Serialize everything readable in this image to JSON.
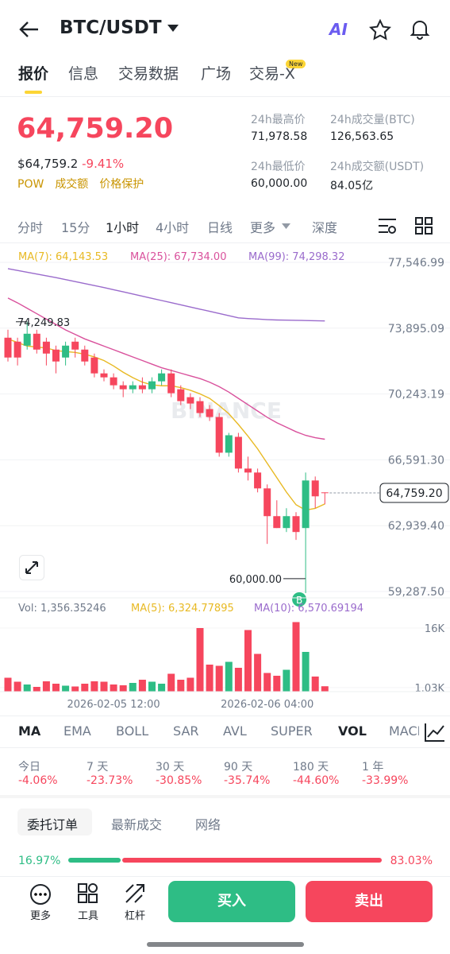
{
  "header": {
    "pair": "BTC/USDT",
    "ai": "AI"
  },
  "tabs": [
    "报价",
    "信息",
    "交易数据",
    "广场",
    "交易-X"
  ],
  "new_badge": "New",
  "price": {
    "last": "64,759.20",
    "usd": "$64,759.2",
    "change": "-9.41%",
    "tags": [
      "POW",
      "成交额",
      "价格保护"
    ]
  },
  "stats": [
    {
      "label": "24h最高价",
      "value": "71,978.58"
    },
    {
      "label": "24h成交量(BTC)",
      "value": "126,563.65"
    },
    {
      "label": "24h最低价",
      "value": "60,000.00"
    },
    {
      "label": "24h成交额(USDT)",
      "value": "84.05亿"
    }
  ],
  "intervals": [
    "分时",
    "15分",
    "1小时",
    "4小时",
    "日线",
    "更多",
    "深度"
  ],
  "chart_data": {
    "type": "candlestick",
    "watermark": "BINANCE",
    "ylim": [
      58935,
      78341
    ],
    "yticks": [
      {
        "value": 77546.99,
        "label": "77,546.99"
      },
      {
        "value": 73895.09,
        "label": "73,895.09"
      },
      {
        "value": 70243.19,
        "label": "70,243.19"
      },
      {
        "value": 66591.3,
        "label": "66,591.30"
      },
      {
        "value": 62939.4,
        "label": "62,939.40"
      },
      {
        "value": 59287.5,
        "label": "59,287.50"
      }
    ],
    "categories": [
      null,
      null,
      null,
      null,
      null,
      null,
      null,
      null,
      null,
      null,
      null,
      "2026-02-05 12:00",
      null,
      null,
      null,
      null,
      null,
      null,
      null,
      null,
      null,
      null,
      null,
      null,
      null,
      null,
      null,
      "2026-02-06 04:00",
      null,
      null,
      null,
      null,
      null,
      null
    ],
    "open": [
      73367,
      73147,
      72927,
      73587,
      73147,
      72707,
      72267,
      73147,
      72707,
      72267,
      71387,
      71167,
      70727,
      70507,
      70727,
      70507,
      70947,
      71387,
      70507,
      70067,
      69847,
      69407,
      68967,
      66987,
      67867,
      66107,
      65887,
      65007,
      63467,
      62807,
      63467,
      62807,
      65447,
      64787
    ],
    "high": [
      73807,
      73367,
      74249.83,
      73807,
      73367,
      72927,
      73147,
      73367,
      72927,
      72487,
      71607,
      71387,
      70947,
      70947,
      71167,
      71167,
      71607,
      71607,
      70727,
      70287,
      70067,
      69627,
      69187,
      68087,
      68087,
      66767,
      66107,
      65227,
      64347,
      63907,
      63687,
      65887,
      65667,
      64787
    ],
    "low": [
      72047,
      71827,
      72707,
      72487,
      71827,
      71387,
      71827,
      72267,
      71827,
      71167,
      70947,
      70507,
      70067,
      70287,
      70287,
      70287,
      70727,
      70067,
      69627,
      69407,
      68967,
      68747,
      66767,
      66767,
      65887,
      65447,
      64787,
      61927,
      62807,
      62587,
      62147,
      60000,
      63907,
      64127
    ],
    "close": [
      72267,
      72267,
      73587,
      72707,
      72487,
      72047,
      72927,
      72707,
      72047,
      71387,
      71167,
      70727,
      70507,
      70727,
      70507,
      70947,
      71387,
      70287,
      69847,
      69715,
      69187,
      68967,
      66987,
      67955,
      66107,
      65887,
      65007,
      63467,
      62807,
      63467,
      62587,
      65447,
      64567,
      64759.2
    ],
    "up_color": "#2ebd85",
    "down_color": "#f6465d",
    "series": [
      {
        "name": "MA(7): 64,143.53",
        "color": "#e8b923",
        "values": [
          73300,
          73100,
          72900,
          72850,
          72800,
          72650,
          72600,
          72550,
          72450,
          72300,
          72100,
          71800,
          71450,
          71150,
          70900,
          70750,
          70700,
          70700,
          70600,
          70450,
          70250,
          70000,
          69600,
          69150,
          68550,
          67900,
          67200,
          66400,
          65600,
          64800,
          64100,
          63800,
          63900,
          64143.53
        ]
      },
      {
        "name": "MA(25): 67,734.00",
        "color": "#d9519c",
        "values": [
          75567,
          75300,
          75000,
          74700,
          74400,
          74100,
          73800,
          73550,
          73300,
          73100,
          72900,
          72700,
          72500,
          72300,
          72100,
          71900,
          71700,
          71550,
          71400,
          71250,
          71100,
          70900,
          70650,
          70350,
          70000,
          69650,
          69300,
          68950,
          68650,
          68400,
          68150,
          67950,
          67820,
          67734
        ]
      },
      {
        "name": "MA(99): 74,298.32",
        "color": "#9a6bcc",
        "values": [
          77195,
          77100,
          77000,
          76900,
          76800,
          76700,
          76590,
          76480,
          76370,
          76260,
          76150,
          76030,
          75910,
          75790,
          75670,
          75550,
          75430,
          75310,
          75190,
          75070,
          74950,
          74830,
          74710,
          74590,
          74470,
          74430,
          74400,
          74370,
          74350,
          74340,
          74330,
          74320,
          74310,
          74298.32
        ]
      }
    ],
    "high_label": {
      "value": 74249.83,
      "label": "74,249.83"
    },
    "low_label": {
      "value": 60000,
      "label": "60,000.00"
    },
    "last": {
      "value": 64759.2,
      "label": "64,759.20"
    },
    "trade_marker": "B",
    "volume": {
      "legend": [
        "Vol: 1,356.35246",
        "MA(5): 6,324.77895",
        "MA(10): 6,570.69194"
      ],
      "ylim": [
        0,
        18000
      ],
      "yticks": [
        {
          "value": 16000,
          "label": "16K"
        },
        {
          "value": 1030,
          "label": "1.03K"
        }
      ],
      "values": [
        3500,
        2500,
        1800,
        1200,
        2600,
        2000,
        1500,
        1300,
        2000,
        2600,
        2500,
        1800,
        1600,
        2200,
        3000,
        2500,
        2000,
        4500,
        3000,
        3500,
        16000,
        6800,
        6500,
        7500,
        6000,
        15500,
        9500,
        4700,
        4000,
        5500,
        17500,
        10000,
        3800,
        1356.35246
      ]
    }
  },
  "indicators": [
    "MA",
    "EMA",
    "BOLL",
    "SAR",
    "AVL",
    "SUPER",
    "VOL",
    "MACD"
  ],
  "performance": [
    {
      "label": "今日",
      "value": "-4.06%"
    },
    {
      "label": "7 天",
      "value": "-23.73%"
    },
    {
      "label": "30 天",
      "value": "-30.85%"
    },
    {
      "label": "90 天",
      "value": "-35.74%"
    },
    {
      "label": "180 天",
      "value": "-44.60%"
    },
    {
      "label": "1 年",
      "value": "-33.99%"
    }
  ],
  "order_tabs": [
    "委托订单",
    "最新成交",
    "网络"
  ],
  "depth_ratio": {
    "values": [
      16.97,
      83.03
    ],
    "value_labels": [
      "16.97%",
      "83.03%"
    ]
  },
  "bottom": {
    "tools": [
      "更多",
      "工具",
      "杠杆"
    ],
    "buy": "买入",
    "sell": "卖出"
  }
}
